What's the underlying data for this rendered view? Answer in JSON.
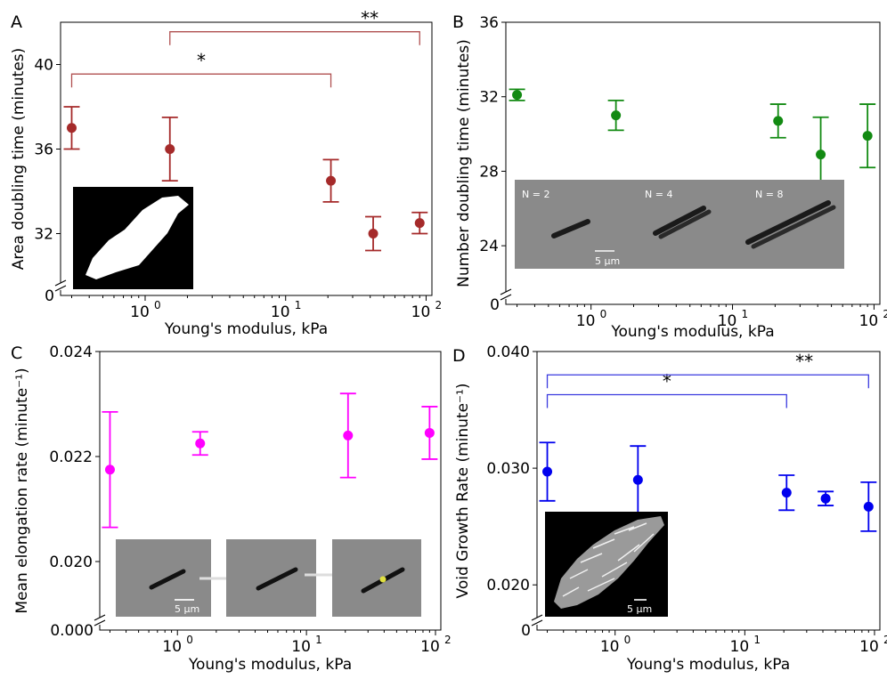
{
  "chart_data": [
    {
      "panel": "A",
      "type": "scatter",
      "xlabel": "Young's modulus, kPa",
      "ylabel": "Area doubling time (minutes)",
      "xscale": "log",
      "xlim": [
        0.25,
        110
      ],
      "ylim": [
        30.0,
        42.0
      ],
      "yticks": [
        "40",
        "36",
        "32"
      ],
      "ytick_values": [
        40,
        36,
        32
      ],
      "axis_break": "0",
      "xticks": [
        {
          "base": "10",
          "exp": "0",
          "value": 1
        },
        {
          "base": "10",
          "exp": "1",
          "value": 10
        },
        {
          "base": "10",
          "exp": "2",
          "value": 100
        }
      ],
      "color": "#a52a2a",
      "points": [
        {
          "x": 0.3,
          "y": 37.0,
          "err": 1.0
        },
        {
          "x": 1.5,
          "y": 36.0,
          "err": 1.5
        },
        {
          "x": 21,
          "y": 34.5,
          "err": 1.0
        },
        {
          "x": 42,
          "y": 32.0,
          "err": 0.8
        },
        {
          "x": 90,
          "y": 32.5,
          "err": 0.5
        }
      ],
      "brackets": [
        {
          "from": 0.3,
          "to": 21,
          "y": 39.55,
          "label": "*"
        },
        {
          "from": 1.5,
          "to": 90,
          "y": 41.55,
          "label": "**"
        }
      ],
      "bracket_color": "#b05050"
    },
    {
      "panel": "B",
      "type": "scatter",
      "xlabel": "Young's modulus, kPa",
      "ylabel": "Number doubling time (minutes)",
      "xscale": "log",
      "xlim": [
        0.25,
        110
      ],
      "ylim": [
        22.0,
        36.0
      ],
      "yticks": [
        "36",
        "32",
        "28",
        "24"
      ],
      "ytick_values": [
        36,
        32,
        28,
        24
      ],
      "axis_break": "0",
      "xticks": [
        {
          "base": "10",
          "exp": "0",
          "value": 1
        },
        {
          "base": "10",
          "exp": "1",
          "value": 10
        },
        {
          "base": "10",
          "exp": "2",
          "value": 100
        }
      ],
      "color": "#128a12",
      "points": [
        {
          "x": 0.3,
          "y": 32.1,
          "err": 0.3
        },
        {
          "x": 1.5,
          "y": 31.0,
          "err": 0.8
        },
        {
          "x": 21,
          "y": 30.7,
          "err": 0.9
        },
        {
          "x": 42,
          "y": 28.9,
          "err": 2.0
        },
        {
          "x": 90,
          "y": 29.9,
          "err": 1.7
        }
      ],
      "brackets": []
    },
    {
      "panel": "C",
      "type": "scatter",
      "xlabel": "Young's modulus, kPa",
      "ylabel": "Mean elongation rate (minute⁻¹)",
      "xscale": "log",
      "xlim": [
        0.25,
        110
      ],
      "ylim": [
        0.019,
        0.024
      ],
      "yticks": [
        "0.024",
        "0.022",
        "0.020"
      ],
      "ytick_values": [
        0.024,
        0.022,
        0.02
      ],
      "axis_break": "0.000",
      "xticks": [
        {
          "base": "10",
          "exp": "0",
          "value": 1
        },
        {
          "base": "10",
          "exp": "1",
          "value": 10
        },
        {
          "base": "10",
          "exp": "2",
          "value": 100
        }
      ],
      "color": "#ff00ff",
      "points": [
        {
          "x": 0.3,
          "y": 0.02175,
          "err": 0.0011
        },
        {
          "x": 1.5,
          "y": 0.02225,
          "err": 0.00022
        },
        {
          "x": 21,
          "y": 0.0224,
          "err": 0.0008
        },
        {
          "x": 90,
          "y": 0.02245,
          "err": 0.0005
        }
      ],
      "brackets": []
    },
    {
      "panel": "D",
      "type": "scatter",
      "xlabel": "Young's modulus, kPa",
      "ylabel": "Void Growth Rate (minute⁻¹)",
      "xscale": "log",
      "xlim": [
        0.25,
        110
      ],
      "ylim": [
        0.0175,
        0.04
      ],
      "yticks": [
        "0.040",
        "0.030",
        "0.020"
      ],
      "ytick_values": [
        0.04,
        0.03,
        0.02
      ],
      "axis_break": "0",
      "xticks": [
        {
          "base": "10",
          "exp": "0",
          "value": 1
        },
        {
          "base": "10",
          "exp": "1",
          "value": 10
        },
        {
          "base": "10",
          "exp": "2",
          "value": 100
        }
      ],
      "color": "#0000ee",
      "points": [
        {
          "x": 0.3,
          "y": 0.0297,
          "err": 0.0025
        },
        {
          "x": 1.5,
          "y": 0.029,
          "err": 0.0029
        },
        {
          "x": 21,
          "y": 0.0279,
          "err": 0.0015
        },
        {
          "x": 42,
          "y": 0.0274,
          "err": 0.0006
        },
        {
          "x": 90,
          "y": 0.0267,
          "err": 0.0021
        }
      ],
      "brackets": [
        {
          "from": 0.3,
          "to": 21,
          "y": 0.0363,
          "label": "*"
        },
        {
          "from": 0.3,
          "to": 90,
          "y": 0.038,
          "label": "**"
        }
      ],
      "bracket_color": "#3a3adf"
    }
  ],
  "insets": {
    "B": {
      "labels": [
        "N = 2",
        "N = 4",
        "N = 8"
      ],
      "scale": "5 μm"
    },
    "C": {
      "scale": "5 μm"
    },
    "D": {
      "scale": "5 μm"
    }
  }
}
